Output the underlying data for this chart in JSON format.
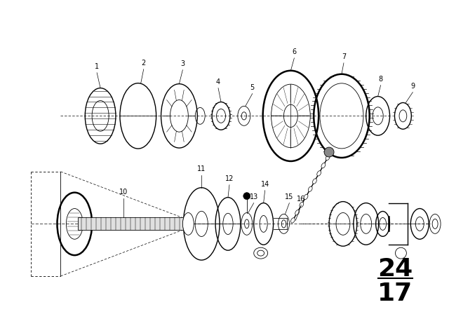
{
  "bg_color": "#ffffff",
  "line_color": "#000000",
  "fig_width": 6.4,
  "fig_height": 4.48,
  "dpi": 100,
  "page_number_top": "24",
  "page_number_bot": "17"
}
